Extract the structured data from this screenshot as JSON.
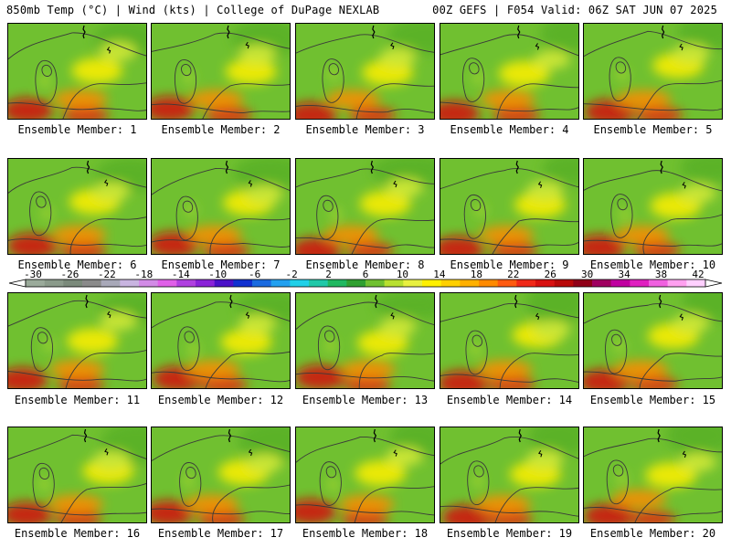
{
  "header": {
    "left": "850mb Temp (°C) | Wind (kts) | College of DuPage NEXLAB",
    "right": "00Z GEFS | F054 Valid: 06Z SAT JUN 07 2025"
  },
  "panels": [
    {
      "label": "Ensemble Member: 1"
    },
    {
      "label": "Ensemble Member: 2"
    },
    {
      "label": "Ensemble Member: 3"
    },
    {
      "label": "Ensemble Member: 4"
    },
    {
      "label": "Ensemble Member: 5"
    },
    {
      "label": "Ensemble Member: 6"
    },
    {
      "label": "Ensemble Member: 7"
    },
    {
      "label": "Ensemble Member: 8"
    },
    {
      "label": "Ensemble Member: 9"
    },
    {
      "label": "Ensemble Member: 10"
    },
    {
      "label": "Ensemble Member: 11"
    },
    {
      "label": "Ensemble Member: 12"
    },
    {
      "label": "Ensemble Member: 13"
    },
    {
      "label": "Ensemble Member: 14"
    },
    {
      "label": "Ensemble Member: 15"
    },
    {
      "label": "Ensemble Member: 16"
    },
    {
      "label": "Ensemble Member: 17"
    },
    {
      "label": "Ensemble Member: 18"
    },
    {
      "label": "Ensemble Member: 19"
    },
    {
      "label": "Ensemble Member: 20"
    }
  ],
  "colorbar": {
    "ticks": [
      "-30",
      "-26",
      "-22",
      "-18",
      "-14",
      "-10",
      "-6",
      "-2",
      "2",
      "6",
      "10",
      "14",
      "18",
      "22",
      "26",
      "30",
      "34",
      "38",
      "42"
    ],
    "colors": [
      "#9aaa9a",
      "#8a9a8a",
      "#7b8a7b",
      "#8a8a8a",
      "#a8a8b8",
      "#c8b4e0",
      "#d28be6",
      "#e060e8",
      "#b040e0",
      "#8a22d8",
      "#4a10c8",
      "#1030d0",
      "#1a6ae0",
      "#22a0f0",
      "#20d0e8",
      "#20c8a8",
      "#20b860",
      "#30a030",
      "#70c030",
      "#b8e030",
      "#e8f040",
      "#fff000",
      "#ffd000",
      "#ffb000",
      "#ff8a00",
      "#ff5a10",
      "#f02818",
      "#d81010",
      "#b80808",
      "#900018",
      "#a00060",
      "#c000a0",
      "#e020c0",
      "#f060e0",
      "#ffa0f0",
      "#ffd0ff"
    ]
  }
}
